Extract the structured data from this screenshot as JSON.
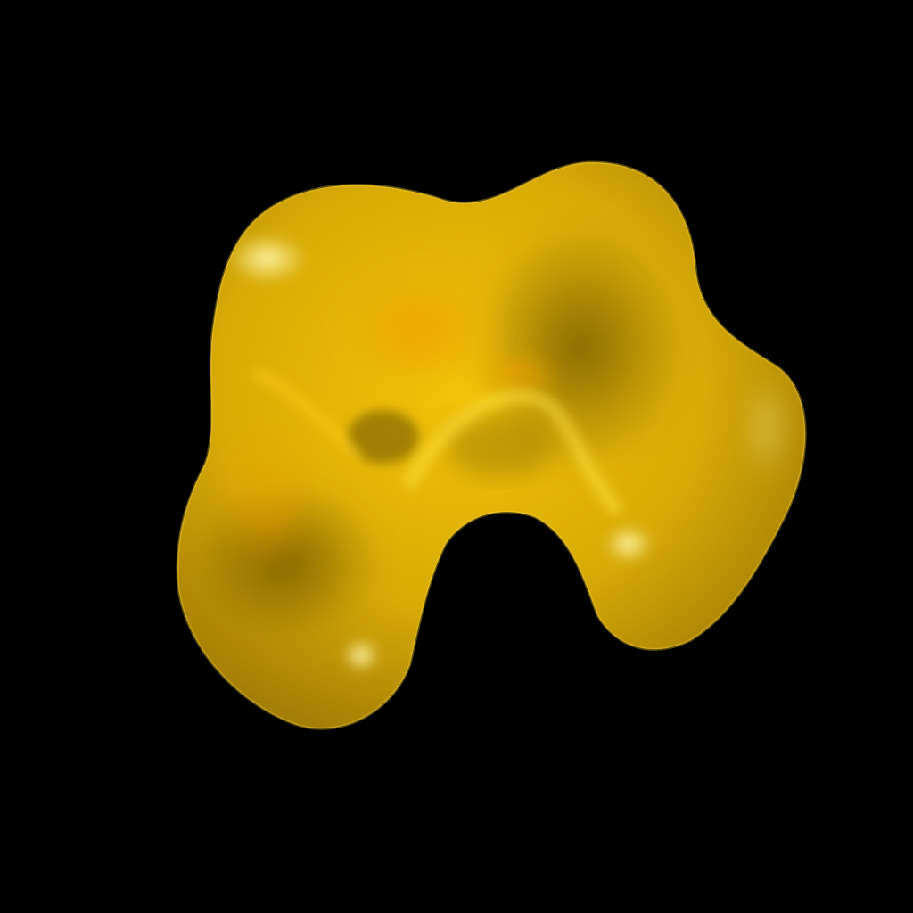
{
  "scene": {
    "subject": "yellow-translucent-blob",
    "colors": {
      "background": "#000000",
      "body_light": "#f2c40a",
      "body_mid": "#d7aa06",
      "body_dark": "#8f6d05",
      "shadow": "#6b5004",
      "orange_glow": "#f0a000",
      "highlight": "#fff6a8"
    }
  }
}
